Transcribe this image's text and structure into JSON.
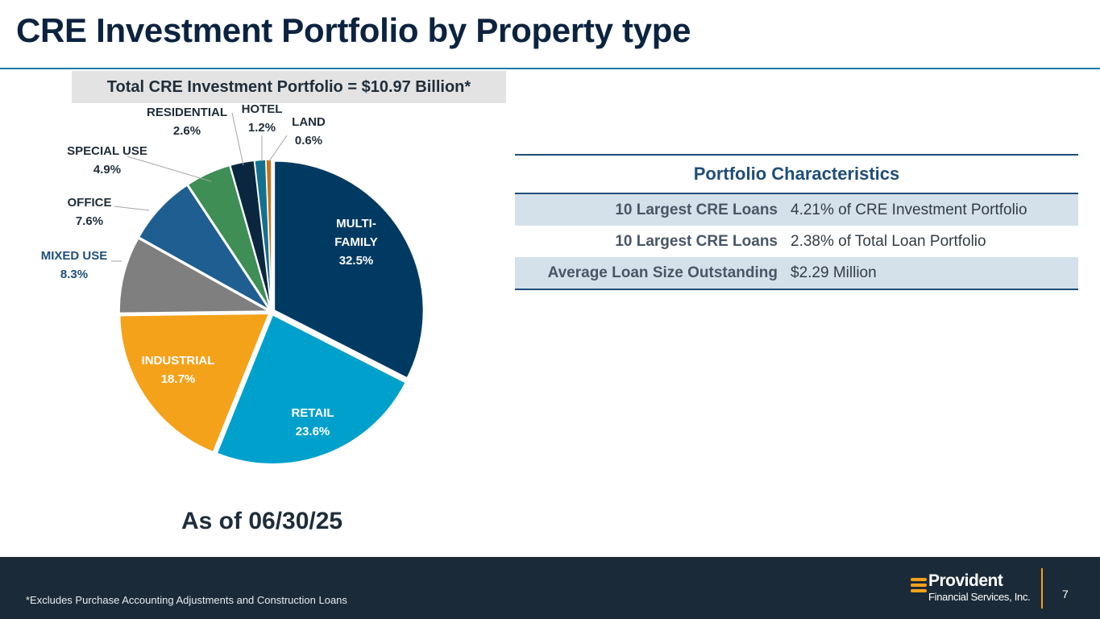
{
  "title": "CRE Investment Portfolio by Property type",
  "total_box": "Total CRE Investment Portfolio = $10.97 Billion*",
  "as_of": "As of 06/30/25",
  "chart_data": {
    "type": "pie",
    "title": "Total CRE Investment Portfolio = $10.97 Billion*",
    "slices": [
      {
        "label_lines": [
          "MULTI-",
          "FAMILY"
        ],
        "pct_text": "32.5%",
        "value": 32.5,
        "color": "#003a63",
        "label_color": "#ffffff"
      },
      {
        "label_lines": [
          "RETAIL"
        ],
        "pct_text": "23.6%",
        "value": 23.6,
        "color": "#00a0cc",
        "label_color": "#ffffff"
      },
      {
        "label_lines": [
          "INDUSTRIAL"
        ],
        "pct_text": "18.7%",
        "value": 18.7,
        "color": "#f5a21b",
        "label_color": "#ffffff"
      },
      {
        "label_lines": [
          "MIXED USE"
        ],
        "pct_text": "8.3%",
        "value": 8.3,
        "color": "#7f7f7f",
        "label_color": "#1f4e79"
      },
      {
        "label_lines": [
          "OFFICE"
        ],
        "pct_text": "7.6%",
        "value": 7.6,
        "color": "#1f5e90",
        "label_color": "#1f2d3a"
      },
      {
        "label_lines": [
          "SPECIAL USE"
        ],
        "pct_text": "4.9%",
        "value": 4.9,
        "color": "#3e8e56",
        "label_color": "#1f2d3a"
      },
      {
        "label_lines": [
          "RESIDENTIAL"
        ],
        "pct_text": "2.6%",
        "value": 2.6,
        "color": "#0b2740",
        "label_color": "#1f2d3a"
      },
      {
        "label_lines": [
          "HOTEL"
        ],
        "pct_text": "1.2%",
        "value": 1.2,
        "color": "#14708f",
        "label_color": "#1f2d3a"
      },
      {
        "label_lines": [
          "LAND"
        ],
        "pct_text": "0.6%",
        "value": 0.6,
        "color": "#c8741a",
        "label_color": "#1f2d3a"
      }
    ]
  },
  "characteristics": {
    "heading": "Portfolio Characteristics",
    "rows": [
      {
        "label": "10 Largest CRE Loans",
        "value": "4.21% of CRE Investment Portfolio"
      },
      {
        "label": "10 Largest CRE Loans",
        "value": "2.38% of Total Loan Portfolio"
      },
      {
        "label": "Average Loan Size Outstanding",
        "value": "$2.29 Million"
      }
    ]
  },
  "footer": {
    "footnote": "*Excludes Purchase Accounting Adjustments and Construction Loans",
    "logo_name": "Provident",
    "logo_sub": "Financial Services, Inc.",
    "page_number": "7",
    "accent": "#f5a21b",
    "background": "#1b2a38"
  }
}
